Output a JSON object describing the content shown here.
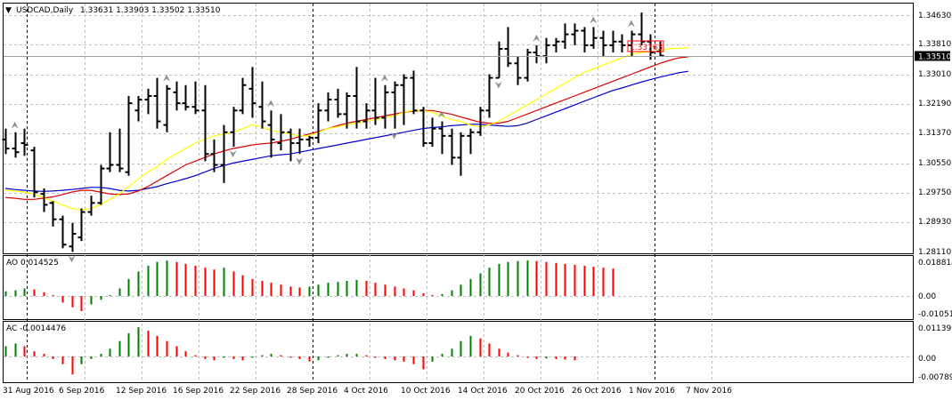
{
  "header": {
    "symbol_text": "USDCAD,Daily",
    "ohlc_text": "1.33631 1.33903 1.33502 1.33510"
  },
  "price_panel": {
    "y_ticks": [
      "1.34630",
      "1.33810",
      "1.33010",
      "1.32190",
      "1.31370",
      "1.30550",
      "1.29750",
      "1.28930",
      "1.28110"
    ],
    "current_price": "1.33510",
    "box_label": "1.33763"
  },
  "ao_panel": {
    "title": "AO 0.014525",
    "y_ticks": [
      "0.018814",
      "0.00",
      "-0.010512"
    ]
  },
  "ac_panel": {
    "title": "AC -0.0014476",
    "y_ticks": [
      "0.011399",
      "0.00",
      "-0.007891"
    ]
  },
  "x_ticks": [
    "31 Aug 2016",
    "6 Sep 2016",
    "12 Sep 2016",
    "16 Sep 2016",
    "22 Sep 2016",
    "28 Sep 2016",
    "4 Oct 2016",
    "10 Oct 2016",
    "14 Oct 2016",
    "20 Oct 2016",
    "26 Oct 2016",
    "1 Nov 2016",
    "7 Nov 2016"
  ],
  "colors": {
    "bars": "#000000",
    "ma_fast": "#ffff00",
    "ma_mid": "#dd0000",
    "ma_slow": "#0000cc",
    "osc_up": "#008000",
    "osc_down": "#ff0000",
    "grid": "#c0c0c0"
  },
  "chart_data": {
    "type": "ohlc",
    "symbol": "USDCAD",
    "timeframe": "Daily",
    "ohlc": [
      [
        1.312,
        1.315,
        1.308,
        1.3095
      ],
      [
        1.3095,
        1.314,
        1.307,
        1.3085
      ],
      [
        1.311,
        1.315,
        1.3075,
        1.3105
      ],
      [
        1.309,
        1.31,
        1.296,
        1.2975
      ],
      [
        1.297,
        1.2985,
        1.292,
        1.294
      ],
      [
        1.2945,
        1.295,
        1.288,
        1.29
      ],
      [
        1.29,
        1.291,
        1.282,
        1.283
      ],
      [
        1.2825,
        1.289,
        1.281,
        1.286
      ],
      [
        1.285,
        1.293,
        1.284,
        1.292
      ],
      [
        1.292,
        1.2965,
        1.291,
        1.2945
      ],
      [
        1.2945,
        1.305,
        1.294,
        1.304
      ],
      [
        1.304,
        1.314,
        1.303,
        1.305
      ],
      [
        1.305,
        1.315,
        1.303,
        1.304
      ],
      [
        1.303,
        1.324,
        1.302,
        1.322
      ],
      [
        1.32,
        1.324,
        1.317,
        1.323
      ],
      [
        1.323,
        1.326,
        1.319,
        1.324
      ],
      [
        1.324,
        1.329,
        1.315,
        1.317
      ],
      [
        1.316,
        1.327,
        1.314,
        1.326
      ],
      [
        1.325,
        1.328,
        1.32,
        1.322
      ],
      [
        1.322,
        1.327,
        1.32,
        1.321
      ],
      [
        1.321,
        1.328,
        1.319,
        1.32
      ],
      [
        1.32,
        1.327,
        1.306,
        1.308
      ],
      [
        1.308,
        1.312,
        1.303,
        1.305
      ],
      [
        1.305,
        1.316,
        1.3,
        1.314
      ],
      [
        1.314,
        1.321,
        1.31,
        1.32
      ],
      [
        1.32,
        1.329,
        1.319,
        1.327
      ],
      [
        1.326,
        1.332,
        1.318,
        1.322
      ],
      [
        1.321,
        1.328,
        1.315,
        1.317
      ],
      [
        1.316,
        1.32,
        1.307,
        1.312
      ],
      [
        1.311,
        1.319,
        1.309,
        1.314
      ],
      [
        1.314,
        1.315,
        1.306,
        1.311
      ],
      [
        1.311,
        1.315,
        1.308,
        1.312
      ],
      [
        1.312,
        1.313,
        1.31,
        1.3125
      ],
      [
        1.3125,
        1.322,
        1.311,
        1.32
      ],
      [
        1.32,
        1.325,
        1.317,
        1.323
      ],
      [
        1.323,
        1.326,
        1.318,
        1.319
      ],
      [
        1.319,
        1.325,
        1.315,
        1.324
      ],
      [
        1.324,
        1.332,
        1.315,
        1.317
      ],
      [
        1.317,
        1.322,
        1.315,
        1.32
      ],
      [
        1.32,
        1.329,
        1.316,
        1.318
      ],
      [
        1.318,
        1.327,
        1.315,
        1.325
      ],
      [
        1.325,
        1.328,
        1.315,
        1.327
      ],
      [
        1.327,
        1.33,
        1.316,
        1.329
      ],
      [
        1.329,
        1.331,
        1.319,
        1.32
      ],
      [
        1.32,
        1.321,
        1.31,
        1.311
      ],
      [
        1.311,
        1.318,
        1.31,
        1.315
      ],
      [
        1.315,
        1.317,
        1.308,
        1.313
      ],
      [
        1.313,
        1.315,
        1.305,
        1.307
      ],
      [
        1.307,
        1.314,
        1.302,
        1.313
      ],
      [
        1.313,
        1.315,
        1.308,
        1.314
      ],
      [
        1.314,
        1.321,
        1.313,
        1.32
      ],
      [
        1.32,
        1.33,
        1.318,
        1.329
      ],
      [
        1.329,
        1.339,
        1.329,
        1.337
      ],
      [
        1.337,
        1.343,
        1.332,
        1.333
      ],
      [
        1.333,
        1.335,
        1.327,
        1.329
      ],
      [
        1.329,
        1.337,
        1.328,
        1.336
      ],
      [
        1.336,
        1.338,
        1.333,
        1.335
      ],
      [
        1.335,
        1.34,
        1.333,
        1.338
      ],
      [
        1.338,
        1.34,
        1.336,
        1.339
      ],
      [
        1.339,
        1.344,
        1.337,
        1.341
      ],
      [
        1.341,
        1.344,
        1.338,
        1.342
      ],
      [
        1.342,
        1.343,
        1.336,
        1.338
      ],
      [
        1.338,
        1.343,
        1.337,
        1.34
      ],
      [
        1.34,
        1.342,
        1.335,
        1.338
      ],
      [
        1.338,
        1.342,
        1.336,
        1.339
      ],
      [
        1.339,
        1.341,
        1.336,
        1.338
      ],
      [
        1.338,
        1.342,
        1.335,
        1.341
      ],
      [
        1.341,
        1.347,
        1.338,
        1.339
      ],
      [
        1.339,
        1.341,
        1.334,
        1.336
      ],
      [
        1.3363,
        1.339,
        1.335,
        1.3351
      ]
    ],
    "ma_fast": [
      1.298,
      1.2978,
      1.2975,
      1.297,
      1.296,
      1.295,
      1.294,
      1.293,
      1.2925,
      1.293,
      1.294,
      1.2955,
      1.297,
      1.299,
      1.301,
      1.303,
      1.3045,
      1.3065,
      1.308,
      1.3095,
      1.311,
      1.312,
      1.313,
      1.3135,
      1.314,
      1.315,
      1.316,
      1.3155,
      1.3145,
      1.314,
      1.3135,
      1.313,
      1.313,
      1.314,
      1.315,
      1.3155,
      1.316,
      1.3165,
      1.317,
      1.3175,
      1.318,
      1.3185,
      1.3195,
      1.32,
      1.32,
      1.3195,
      1.3185,
      1.3175,
      1.317,
      1.316,
      1.3155,
      1.316,
      1.317,
      1.3185,
      1.32,
      1.3215,
      1.323,
      1.3245,
      1.326,
      1.3275,
      1.329,
      1.3305,
      1.3315,
      1.3325,
      1.3335,
      1.3345,
      1.3355,
      1.336,
      1.3362,
      1.3365,
      1.337,
      1.3372,
      1.3372
    ],
    "ma_mid": [
      1.296,
      1.2958,
      1.2955,
      1.2955,
      1.2958,
      1.2962,
      1.2968,
      1.2975,
      1.298,
      1.298,
      1.2975,
      1.297,
      1.2968,
      1.297,
      1.2978,
      1.299,
      1.3005,
      1.302,
      1.3035,
      1.305,
      1.306,
      1.307,
      1.308,
      1.3088,
      1.3095,
      1.31,
      1.3105,
      1.3108,
      1.311,
      1.3115,
      1.312,
      1.3128,
      1.3135,
      1.3142,
      1.315,
      1.3158,
      1.3165,
      1.317,
      1.3175,
      1.318,
      1.3185,
      1.319,
      1.3195,
      1.3198,
      1.32,
      1.32,
      1.3195,
      1.319,
      1.3182,
      1.3175,
      1.3168,
      1.3165,
      1.3165,
      1.317,
      1.318,
      1.319,
      1.32,
      1.321,
      1.322,
      1.323,
      1.324,
      1.325,
      1.326,
      1.327,
      1.328,
      1.329,
      1.33,
      1.331,
      1.332,
      1.333,
      1.3338,
      1.3345,
      1.3348
    ],
    "ma_slow": [
      1.2985,
      1.2982,
      1.298,
      1.2978,
      1.2977,
      1.2978,
      1.298,
      1.2982,
      1.2985,
      1.2988,
      1.2988,
      1.2985,
      1.298,
      1.2978,
      1.298,
      1.2985,
      1.299,
      1.2998,
      1.3005,
      1.3012,
      1.302,
      1.303,
      1.304,
      1.3048,
      1.3055,
      1.306,
      1.3065,
      1.307,
      1.3075,
      1.3078,
      1.308,
      1.3085,
      1.309,
      1.3095,
      1.31,
      1.3105,
      1.311,
      1.3115,
      1.312,
      1.3125,
      1.313,
      1.3135,
      1.314,
      1.3145,
      1.315,
      1.3153,
      1.3155,
      1.3158,
      1.316,
      1.3162,
      1.3162,
      1.316,
      1.3158,
      1.3156,
      1.3158,
      1.3165,
      1.3175,
      1.3185,
      1.3195,
      1.3205,
      1.3215,
      1.3225,
      1.3235,
      1.3245,
      1.3255,
      1.3262,
      1.327,
      1.3278,
      1.3285,
      1.3292,
      1.3298,
      1.3304,
      1.3308
    ],
    "ao": [
      0.0025,
      0.003,
      0.004,
      0.0035,
      0.002,
      0.0005,
      -0.0035,
      -0.006,
      -0.008,
      -0.0045,
      -0.002,
      0.0005,
      0.004,
      0.009,
      0.013,
      0.016,
      0.018,
      0.0188,
      0.018,
      0.017,
      0.016,
      0.015,
      0.014,
      0.015,
      0.013,
      0.011,
      0.009,
      0.008,
      0.007,
      0.006,
      0.005,
      0.0045,
      0.005,
      0.006,
      0.007,
      0.0075,
      0.008,
      0.0085,
      0.008,
      0.007,
      0.006,
      0.005,
      0.004,
      0.003,
      0.0015,
      0.0005,
      0.001,
      0.003,
      0.006,
      0.009,
      0.012,
      0.015,
      0.017,
      0.018,
      0.0185,
      0.0188,
      0.0185,
      0.018,
      0.0175,
      0.017,
      0.0165,
      0.016,
      0.0155,
      0.015,
      0.0145
    ],
    "ac": [
      0.004,
      0.005,
      0.004,
      0.002,
      0.001,
      -0.001,
      -0.003,
      -0.007,
      -0.003,
      -0.001,
      0.001,
      0.003,
      0.006,
      0.009,
      0.0114,
      0.01,
      0.008,
      0.006,
      0.004,
      0.002,
      0.0005,
      -0.001,
      -0.0015,
      -0.0005,
      -0.001,
      -0.0015,
      -0.0005,
      0.0005,
      0.001,
      0.0005,
      -0.0005,
      -0.001,
      -0.002,
      -0.0015,
      -0.0005,
      0.0005,
      0.001,
      0.001,
      0.0005,
      -0.0005,
      -0.001,
      -0.0015,
      -0.002,
      -0.003,
      -0.005,
      -0.002,
      0.001,
      0.003,
      0.006,
      0.008,
      0.007,
      0.005,
      0.003,
      0.0015,
      0.0005,
      -0.0005,
      -0.001,
      -0.0008,
      -0.001,
      -0.0012,
      -0.0015
    ]
  }
}
